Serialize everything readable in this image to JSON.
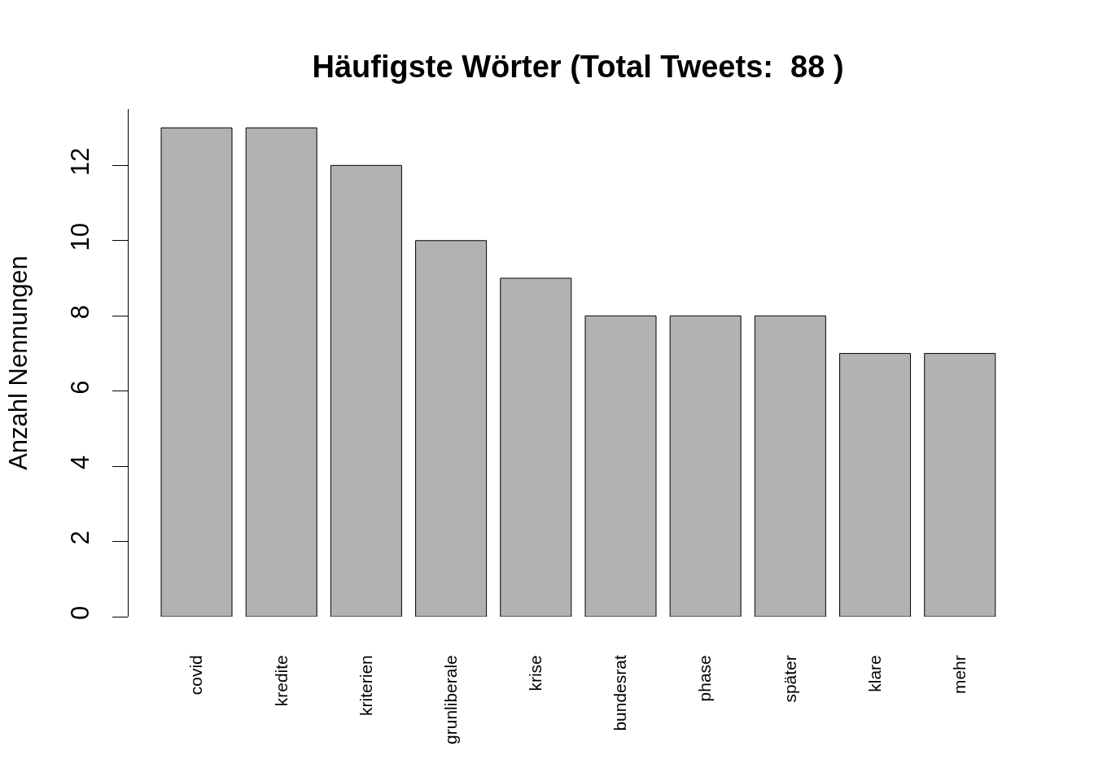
{
  "chart_data": {
    "type": "bar",
    "title": "Häufigste Wörter (Total Tweets:  88 )",
    "ylabel": "Anzahl Nennungen",
    "categories": [
      "covid",
      "kredite",
      "kriterien",
      "grunliberale",
      "krise",
      "bundesrat",
      "phase",
      "später",
      "klare",
      "mehr"
    ],
    "values": [
      13,
      13,
      12,
      10,
      9,
      8,
      8,
      8,
      7,
      7
    ],
    "color": "#b2b2b2",
    "ylim": [
      0,
      13.5
    ],
    "yticks": [
      0,
      2,
      4,
      6,
      8,
      10,
      12
    ],
    "grid": false,
    "legend": false
  }
}
